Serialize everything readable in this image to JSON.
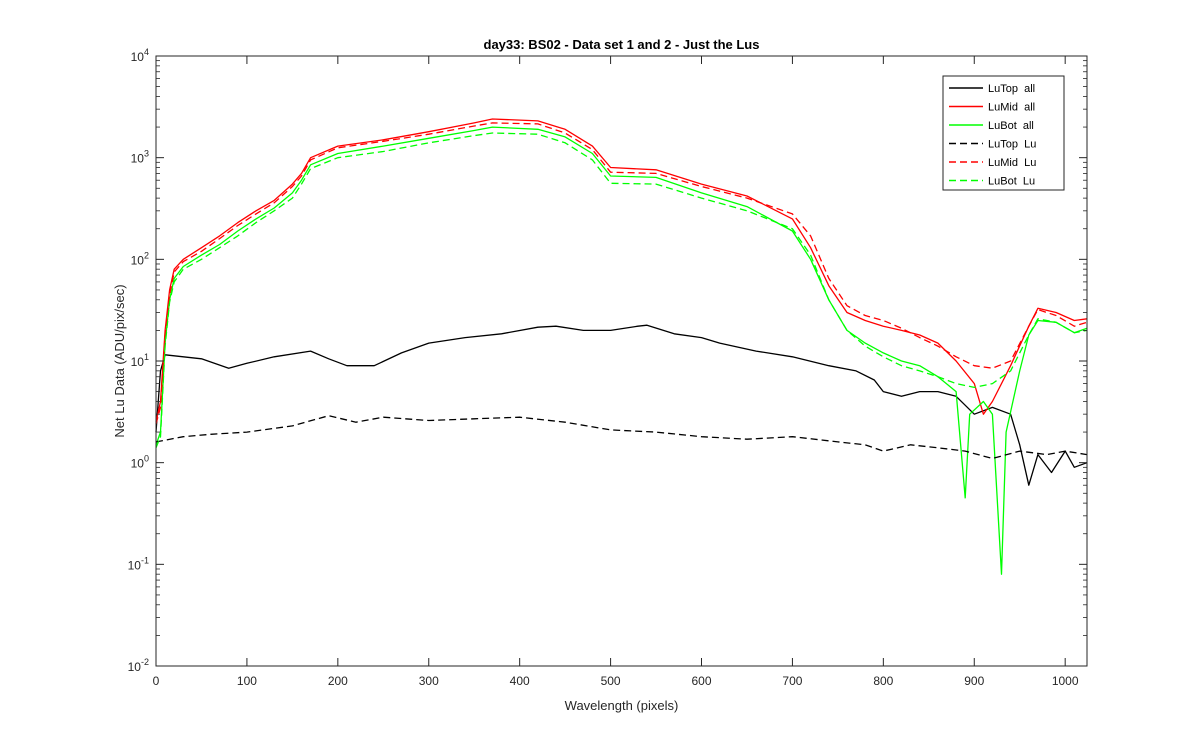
{
  "chart_data": {
    "type": "line",
    "title": "day33: BS02 - Data set 1 and 2 - Just the Lus",
    "xlabel": "Wavelength (pixels)",
    "ylabel": "Net Lu Data (ADU/pix/sec)",
    "xlim": [
      0,
      1024
    ],
    "ylim": [
      0.01,
      10000
    ],
    "yscale": "log",
    "grid": false,
    "legend_position": "top-right",
    "x_ticks": [
      "0",
      "100",
      "200",
      "300",
      "400",
      "500",
      "600",
      "700",
      "800",
      "900",
      "1000"
    ],
    "y_ticks": [
      {
        "base": "10",
        "exp": "-2"
      },
      {
        "base": "10",
        "exp": "-1"
      },
      {
        "base": "10",
        "exp": "0"
      },
      {
        "base": "10",
        "exp": "1"
      },
      {
        "base": "10",
        "exp": "2"
      },
      {
        "base": "10",
        "exp": "3"
      },
      {
        "base": "10",
        "exp": "4"
      }
    ],
    "series": [
      {
        "name": "LuTop  all",
        "color": "#000000",
        "dash": "solid",
        "points": [
          [
            0,
            2.0
          ],
          [
            5,
            8.0
          ],
          [
            10,
            11.5
          ],
          [
            30,
            11.0
          ],
          [
            50,
            10.5
          ],
          [
            80,
            8.5
          ],
          [
            100,
            9.5
          ],
          [
            130,
            11.0
          ],
          [
            170,
            12.5
          ],
          [
            190,
            10.5
          ],
          [
            210,
            9.0
          ],
          [
            240,
            9.0
          ],
          [
            270,
            12.0
          ],
          [
            300,
            15.0
          ],
          [
            340,
            17.0
          ],
          [
            380,
            18.5
          ],
          [
            420,
            21.5
          ],
          [
            440,
            22.0
          ],
          [
            470,
            20.0
          ],
          [
            500,
            20.0
          ],
          [
            530,
            22.0
          ],
          [
            540,
            22.5
          ],
          [
            570,
            18.5
          ],
          [
            600,
            17.0
          ],
          [
            620,
            15.0
          ],
          [
            660,
            12.5
          ],
          [
            700,
            11.0
          ],
          [
            740,
            9.0
          ],
          [
            770,
            8.0
          ],
          [
            790,
            6.5
          ],
          [
            800,
            5.0
          ],
          [
            820,
            4.5
          ],
          [
            840,
            5.0
          ],
          [
            860,
            5.0
          ],
          [
            880,
            4.5
          ],
          [
            900,
            3.0
          ],
          [
            920,
            3.5
          ],
          [
            940,
            3.0
          ],
          [
            950,
            1.5
          ],
          [
            960,
            0.6
          ],
          [
            970,
            1.2
          ],
          [
            985,
            0.8
          ],
          [
            1000,
            1.3
          ],
          [
            1010,
            0.9
          ],
          [
            1024,
            1.0
          ]
        ]
      },
      {
        "name": "LuMid  all",
        "color": "#ff0000",
        "dash": "solid",
        "points": [
          [
            0,
            2.5
          ],
          [
            5,
            4.0
          ],
          [
            10,
            20
          ],
          [
            15,
            50
          ],
          [
            20,
            80
          ],
          [
            30,
            100
          ],
          [
            50,
            130
          ],
          [
            70,
            170
          ],
          [
            90,
            230
          ],
          [
            110,
            300
          ],
          [
            130,
            380
          ],
          [
            150,
            550
          ],
          [
            160,
            700
          ],
          [
            170,
            1000
          ],
          [
            200,
            1300
          ],
          [
            250,
            1500
          ],
          [
            300,
            1800
          ],
          [
            350,
            2200
          ],
          [
            370,
            2400
          ],
          [
            420,
            2300
          ],
          [
            450,
            1900
          ],
          [
            480,
            1300
          ],
          [
            500,
            800
          ],
          [
            550,
            760
          ],
          [
            600,
            550
          ],
          [
            650,
            420
          ],
          [
            700,
            250
          ],
          [
            720,
            130
          ],
          [
            740,
            55
          ],
          [
            760,
            30
          ],
          [
            780,
            25
          ],
          [
            800,
            22
          ],
          [
            820,
            20
          ],
          [
            840,
            18
          ],
          [
            860,
            15
          ],
          [
            880,
            10
          ],
          [
            900,
            6
          ],
          [
            910,
            3
          ],
          [
            920,
            4
          ],
          [
            940,
            9
          ],
          [
            960,
            22
          ],
          [
            970,
            33
          ],
          [
            990,
            30
          ],
          [
            1010,
            25
          ],
          [
            1024,
            26
          ]
        ]
      },
      {
        "name": "LuBot  all",
        "color": "#00ff00",
        "dash": "solid",
        "points": [
          [
            0,
            1.5
          ],
          [
            5,
            2.0
          ],
          [
            10,
            15
          ],
          [
            15,
            40
          ],
          [
            20,
            65
          ],
          [
            30,
            85
          ],
          [
            50,
            110
          ],
          [
            70,
            140
          ],
          [
            90,
            190
          ],
          [
            110,
            250
          ],
          [
            130,
            320
          ],
          [
            150,
            450
          ],
          [
            160,
            600
          ],
          [
            170,
            850
          ],
          [
            200,
            1100
          ],
          [
            250,
            1300
          ],
          [
            300,
            1550
          ],
          [
            350,
            1850
          ],
          [
            370,
            2000
          ],
          [
            420,
            1900
          ],
          [
            450,
            1600
          ],
          [
            480,
            1100
          ],
          [
            500,
            660
          ],
          [
            550,
            640
          ],
          [
            600,
            450
          ],
          [
            650,
            330
          ],
          [
            700,
            190
          ],
          [
            720,
            100
          ],
          [
            740,
            40
          ],
          [
            760,
            20
          ],
          [
            780,
            15
          ],
          [
            800,
            12
          ],
          [
            820,
            10
          ],
          [
            840,
            9
          ],
          [
            860,
            7
          ],
          [
            880,
            5
          ],
          [
            890,
            0.45
          ],
          [
            895,
            3
          ],
          [
            910,
            4
          ],
          [
            920,
            3
          ],
          [
            930,
            0.08
          ],
          [
            935,
            2
          ],
          [
            950,
            8
          ],
          [
            960,
            18
          ],
          [
            970,
            25
          ],
          [
            990,
            24
          ],
          [
            1010,
            19
          ],
          [
            1024,
            21
          ]
        ]
      },
      {
        "name": "LuTop  Lu",
        "color": "#000000",
        "dash": "dashed",
        "points": [
          [
            0,
            1.6
          ],
          [
            30,
            1.8
          ],
          [
            60,
            1.9
          ],
          [
            100,
            2.0
          ],
          [
            150,
            2.3
          ],
          [
            190,
            2.9
          ],
          [
            220,
            2.5
          ],
          [
            250,
            2.8
          ],
          [
            300,
            2.6
          ],
          [
            350,
            2.7
          ],
          [
            400,
            2.8
          ],
          [
            450,
            2.5
          ],
          [
            500,
            2.1
          ],
          [
            550,
            2.0
          ],
          [
            600,
            1.8
          ],
          [
            650,
            1.7
          ],
          [
            700,
            1.8
          ],
          [
            750,
            1.6
          ],
          [
            780,
            1.5
          ],
          [
            800,
            1.3
          ],
          [
            830,
            1.5
          ],
          [
            860,
            1.4
          ],
          [
            890,
            1.3
          ],
          [
            920,
            1.1
          ],
          [
            950,
            1.3
          ],
          [
            980,
            1.2
          ],
          [
            1000,
            1.3
          ],
          [
            1024,
            1.2
          ]
        ]
      },
      {
        "name": "LuMid  Lu",
        "color": "#ff0000",
        "dash": "dashed",
        "points": [
          [
            0,
            2.4
          ],
          [
            5,
            3.5
          ],
          [
            10,
            18
          ],
          [
            15,
            45
          ],
          [
            20,
            75
          ],
          [
            30,
            95
          ],
          [
            50,
            120
          ],
          [
            70,
            160
          ],
          [
            90,
            215
          ],
          [
            110,
            280
          ],
          [
            130,
            360
          ],
          [
            150,
            520
          ],
          [
            160,
            660
          ],
          [
            170,
            950
          ],
          [
            200,
            1250
          ],
          [
            250,
            1450
          ],
          [
            300,
            1700
          ],
          [
            350,
            2050
          ],
          [
            370,
            2200
          ],
          [
            420,
            2150
          ],
          [
            450,
            1750
          ],
          [
            480,
            1200
          ],
          [
            500,
            720
          ],
          [
            550,
            700
          ],
          [
            600,
            520
          ],
          [
            650,
            400
          ],
          [
            700,
            280
          ],
          [
            720,
            170
          ],
          [
            740,
            65
          ],
          [
            760,
            35
          ],
          [
            780,
            28
          ],
          [
            800,
            25
          ],
          [
            820,
            21
          ],
          [
            840,
            17
          ],
          [
            860,
            14
          ],
          [
            880,
            11
          ],
          [
            900,
            9
          ],
          [
            920,
            8.5
          ],
          [
            940,
            10
          ],
          [
            960,
            22
          ],
          [
            970,
            32
          ],
          [
            990,
            28
          ],
          [
            1010,
            22
          ],
          [
            1024,
            24
          ]
        ]
      },
      {
        "name": "LuBot  Lu",
        "color": "#00ff00",
        "dash": "dashed",
        "points": [
          [
            0,
            1.4
          ],
          [
            5,
            1.8
          ],
          [
            10,
            14
          ],
          [
            15,
            38
          ],
          [
            20,
            60
          ],
          [
            30,
            80
          ],
          [
            50,
            100
          ],
          [
            70,
            130
          ],
          [
            90,
            170
          ],
          [
            110,
            230
          ],
          [
            130,
            300
          ],
          [
            150,
            400
          ],
          [
            160,
            550
          ],
          [
            170,
            780
          ],
          [
            200,
            1000
          ],
          [
            250,
            1150
          ],
          [
            300,
            1400
          ],
          [
            350,
            1650
          ],
          [
            370,
            1750
          ],
          [
            420,
            1700
          ],
          [
            450,
            1400
          ],
          [
            480,
            950
          ],
          [
            500,
            560
          ],
          [
            550,
            550
          ],
          [
            600,
            400
          ],
          [
            650,
            300
          ],
          [
            700,
            200
          ],
          [
            720,
            110
          ],
          [
            740,
            40
          ],
          [
            760,
            20
          ],
          [
            780,
            14
          ],
          [
            800,
            11
          ],
          [
            820,
            9
          ],
          [
            840,
            8
          ],
          [
            860,
            7
          ],
          [
            880,
            6
          ],
          [
            900,
            5.5
          ],
          [
            920,
            6
          ],
          [
            940,
            8
          ],
          [
            960,
            18
          ],
          [
            970,
            26
          ],
          [
            990,
            24
          ],
          [
            1010,
            19
          ],
          [
            1024,
            20
          ]
        ]
      }
    ]
  }
}
